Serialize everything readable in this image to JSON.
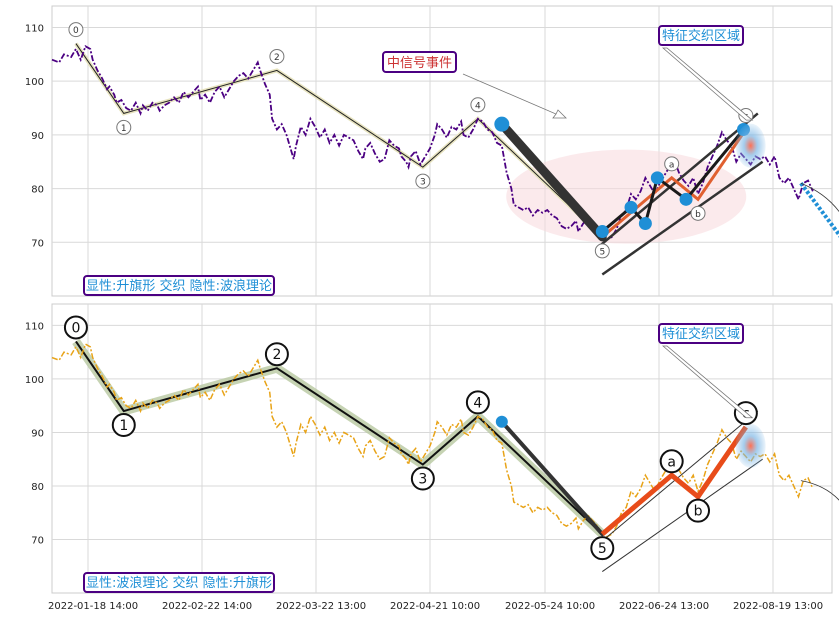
{
  "chart_data": [
    {
      "type": "line",
      "ylim": [
        60,
        114
      ],
      "yticks": [
        70,
        80,
        90,
        100,
        110
      ],
      "grid": true,
      "x_dates": [
        "2022-01-18 14:00",
        "2022-02-22 14:00",
        "2022-03-22 13:00",
        "2022-04-21 10:00",
        "2022-05-24 10:00",
        "2022-06-24 13:00",
        "2022-08-19 13:00"
      ],
      "series": [
        {
          "color": "#4b0082",
          "style": "dashdot",
          "points": [
            [
              0,
              104
            ],
            [
              3,
              103.5
            ],
            [
              5,
              105
            ],
            [
              8,
              104.5
            ],
            [
              10,
              106
            ],
            [
              12,
              104
            ],
            [
              14,
              106.5
            ],
            [
              16,
              106
            ],
            [
              17,
              104
            ],
            [
              19,
              102
            ],
            [
              21,
              100.5
            ],
            [
              23,
              98.5
            ],
            [
              24,
              99
            ],
            [
              26,
              97.5
            ],
            [
              27,
              96
            ],
            [
              29,
              96.5
            ],
            [
              31,
              95
            ],
            [
              33,
              94.5
            ],
            [
              35,
              96
            ],
            [
              37,
              94
            ],
            [
              38,
              95.5
            ],
            [
              40,
              94.5
            ],
            [
              42,
              96
            ],
            [
              44,
              95.5
            ],
            [
              45,
              94.5
            ],
            [
              47,
              95.5
            ],
            [
              49,
              96
            ],
            [
              51,
              97
            ],
            [
              53,
              96
            ],
            [
              55,
              98
            ],
            [
              57,
              97
            ],
            [
              59,
              98
            ],
            [
              61,
              99
            ],
            [
              62,
              96.5
            ],
            [
              64,
              97.5
            ],
            [
              66,
              96
            ],
            [
              68,
              98
            ],
            [
              70,
              99
            ],
            [
              72,
              97
            ],
            [
              74,
              98.5
            ],
            [
              76,
              100
            ],
            [
              78,
              101
            ],
            [
              80,
              101.5
            ],
            [
              82,
              100.5
            ],
            [
              84,
              102
            ],
            [
              86,
              103.5
            ],
            [
              87,
              102
            ],
            [
              89,
              99.5
            ],
            [
              91,
              97.5
            ],
            [
              92,
              93
            ],
            [
              94,
              91
            ],
            [
              96,
              92
            ],
            [
              98,
              90
            ],
            [
              100,
              87
            ],
            [
              101,
              85.5
            ],
            [
              102,
              88
            ],
            [
              104,
              91.5
            ],
            [
              106,
              90
            ],
            [
              108,
              93
            ],
            [
              110,
              91.5
            ],
            [
              112,
              89.5
            ],
            [
              114,
              91
            ],
            [
              116,
              88.5
            ],
            [
              118,
              90
            ],
            [
              120,
              88
            ],
            [
              122,
              90
            ],
            [
              124,
              89.5
            ],
            [
              126,
              89
            ],
            [
              128,
              87
            ],
            [
              130,
              85.5
            ],
            [
              131,
              87.5
            ],
            [
              133,
              88.5
            ],
            [
              135,
              86.5
            ],
            [
              137,
              85
            ],
            [
              139,
              85.5
            ],
            [
              141,
              89
            ],
            [
              143,
              88
            ],
            [
              145,
              87.5
            ],
            [
              146,
              86
            ],
            [
              148,
              85
            ],
            [
              149,
              84
            ],
            [
              150,
              86
            ],
            [
              152,
              87
            ],
            [
              154,
              84.5
            ],
            [
              156,
              86
            ],
            [
              158,
              87.5
            ],
            [
              160,
              90
            ],
            [
              161,
              92
            ],
            [
              163,
              91
            ],
            [
              165,
              89.5
            ],
            [
              167,
              91.5
            ],
            [
              169,
              91
            ],
            [
              171,
              92.5
            ],
            [
              172,
              90
            ],
            [
              174,
              89.5
            ],
            [
              176,
              91
            ],
            [
              178,
              93
            ],
            [
              180,
              92.5
            ],
            [
              182,
              91
            ],
            [
              184,
              90.5
            ],
            [
              186,
              88.5
            ],
            [
              188,
              88
            ],
            [
              190,
              83
            ],
            [
              192,
              80
            ],
            [
              193,
              77
            ],
            [
              195,
              76.5
            ],
            [
              197,
              76
            ],
            [
              199,
              76.5
            ],
            [
              201,
              75
            ],
            [
              203,
              76
            ],
            [
              205,
              75.5
            ],
            [
              207,
              76
            ],
            [
              209,
              75
            ],
            [
              211,
              74.5
            ],
            [
              213,
              73
            ],
            [
              215,
              72.5
            ],
            [
              217,
              73
            ],
            [
              219,
              74
            ],
            [
              220,
              72
            ],
            [
              222,
              73.5
            ],
            [
              224,
              74.5
            ],
            [
              226,
              73.5
            ],
            [
              228,
              72.5
            ],
            [
              230,
              71
            ],
            [
              232,
              70.5
            ],
            [
              234,
              71
            ],
            [
              236,
              72.5
            ],
            [
              238,
              75
            ],
            [
              240,
              76
            ],
            [
              242,
              79
            ],
            [
              244,
              78
            ],
            [
              246,
              79.5
            ],
            [
              248,
              82
            ],
            [
              250,
              80.5
            ],
            [
              252,
              79
            ],
            [
              254,
              81
            ],
            [
              256,
              82.5
            ],
            [
              258,
              84
            ],
            [
              260,
              85.5
            ],
            [
              262,
              83
            ],
            [
              264,
              81.5
            ],
            [
              266,
              80.5
            ],
            [
              268,
              82
            ],
            [
              270,
              79
            ],
            [
              272,
              81
            ],
            [
              274,
              84
            ],
            [
              276,
              86
            ],
            [
              278,
              88
            ],
            [
              280,
              90.5
            ],
            [
              282,
              89
            ],
            [
              284,
              88
            ],
            [
              286,
              85
            ],
            [
              288,
              86.5
            ],
            [
              290,
              85.5
            ],
            [
              292,
              84.5
            ],
            [
              294,
              86
            ],
            [
              296,
              85.5
            ],
            [
              298,
              86
            ],
            [
              300,
              84.5
            ],
            [
              302,
              86
            ],
            [
              304,
              82
            ],
            [
              306,
              81
            ],
            [
              308,
              82
            ],
            [
              310,
              80
            ],
            [
              312,
              78
            ],
            [
              314,
              81
            ],
            [
              316,
              81.5
            ],
            [
              318,
              79.5
            ]
          ]
        }
      ],
      "waves": [
        {
          "label": "0",
          "x": 10,
          "y": 107
        },
        {
          "label": "1",
          "x": 30,
          "y": 94
        },
        {
          "label": "2",
          "x": 94,
          "y": 102
        },
        {
          "label": "3",
          "x": 155,
          "y": 84
        },
        {
          "label": "4",
          "x": 178,
          "y": 93
        },
        {
          "label": "5",
          "x": 230,
          "y": 71
        },
        {
          "label": "a",
          "x": 259,
          "y": 82
        },
        {
          "label": "b",
          "x": 270,
          "y": 78
        },
        {
          "label": "c",
          "x": 290,
          "y": 91
        }
      ],
      "annotations": [
        "中信号事件",
        "特征交织区域"
      ],
      "text": "显性:升旗形 交织 隐性:波浪理论"
    },
    {
      "type": "line",
      "ylim": [
        60,
        114
      ],
      "yticks": [
        70,
        80,
        90,
        100,
        110
      ],
      "grid": true,
      "x_dates": [
        "2022-01-18 14:00",
        "2022-02-22 14:00",
        "2022-03-22 13:00",
        "2022-04-21 10:00",
        "2022-05-24 10:00",
        "2022-06-24 13:00",
        "2022-08-19 13:00"
      ],
      "series": [
        {
          "color": "#e8a317",
          "style": "dashdot",
          "points": "same as upper panel"
        }
      ],
      "waves": [
        {
          "label": "0",
          "x": 10,
          "y": 107
        },
        {
          "label": "1",
          "x": 30,
          "y": 94
        },
        {
          "label": "2",
          "x": 94,
          "y": 102
        },
        {
          "label": "3",
          "x": 155,
          "y": 84
        },
        {
          "label": "4",
          "x": 178,
          "y": 93
        },
        {
          "label": "5",
          "x": 230,
          "y": 71
        },
        {
          "label": "a",
          "x": 259,
          "y": 82
        },
        {
          "label": "b",
          "x": 270,
          "y": 78
        },
        {
          "label": "c",
          "x": 290,
          "y": 91
        }
      ],
      "annotations": [
        "特征交织区域"
      ],
      "text": "显性:波浪理论 交织 隐性:升旗形"
    }
  ],
  "colors": {
    "purple": "#4b0082",
    "orange": "#e8a317",
    "blue": "#1f8fd6",
    "red_orange": "#e84c1a",
    "tag_border": "#4b0082",
    "tag_text": "#1f8fd6",
    "event_text": "#cc3333"
  }
}
